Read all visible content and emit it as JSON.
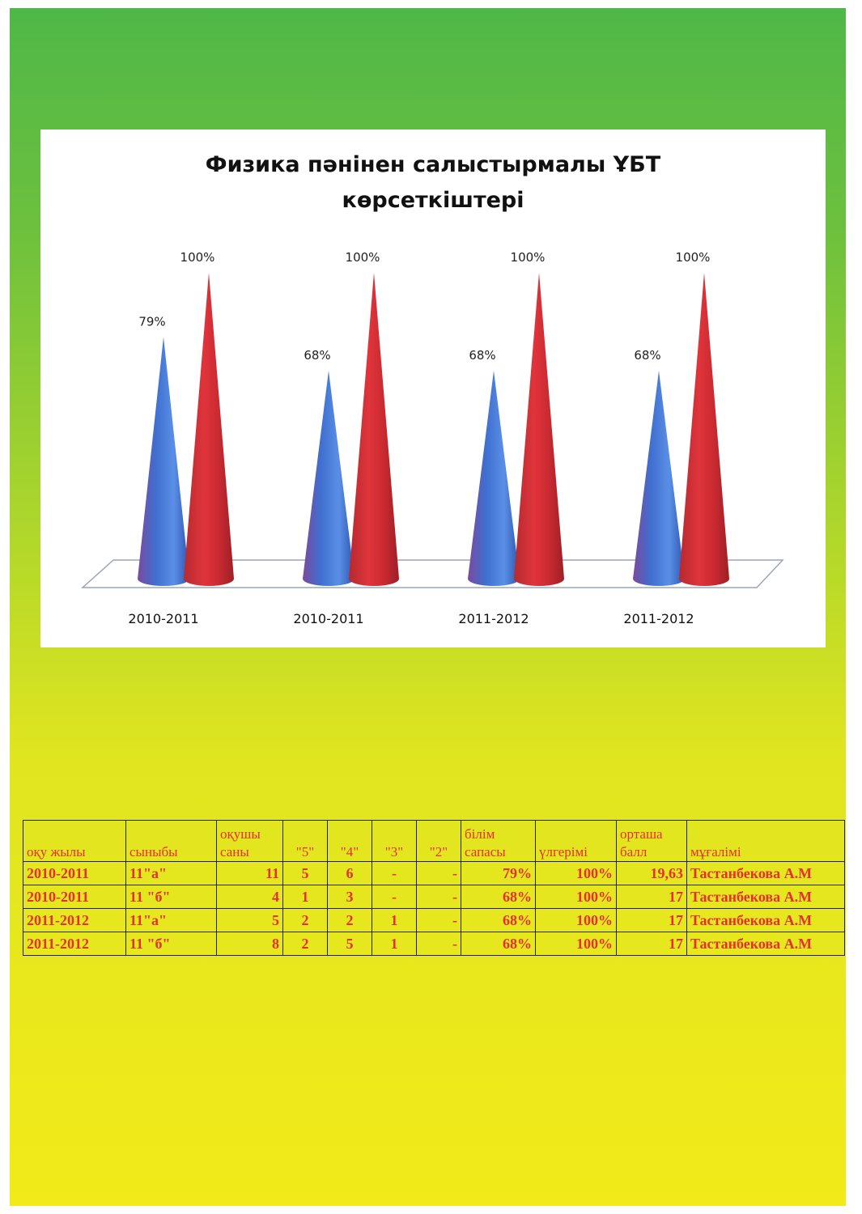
{
  "chart_data": {
    "type": "bar",
    "style": "3d-cone",
    "title": "Физика пәнінен салыстырмалы ҰБТ көрсеткіштері",
    "title_lines": [
      "Физика пәнінен салыстырмалы ҰБТ",
      "көрсеткіштері"
    ],
    "categories": [
      "2010-2011",
      "2010-2011",
      "2011-2012",
      "2011-2012"
    ],
    "series": [
      {
        "values": [
          79,
          68,
          68,
          68
        ],
        "labels": [
          "79%",
          "68%",
          "68%",
          "68%"
        ],
        "color": "#3f6fd0"
      },
      {
        "values": [
          100,
          100,
          100,
          100
        ],
        "labels": [
          "100%",
          "100%",
          "100%",
          "100%"
        ],
        "color": "#d12b32"
      }
    ],
    "ylim": [
      0,
      100
    ],
    "grid": false,
    "legend": "none"
  },
  "table": {
    "headers": [
      [
        "оқу жылы"
      ],
      [
        "сыныбы"
      ],
      [
        "оқушы",
        "саны"
      ],
      [
        "\"5\""
      ],
      [
        "\"4\""
      ],
      [
        "\"3\""
      ],
      [
        "\"2\""
      ],
      [
        "білім",
        "сапасы"
      ],
      [
        "үлгерімі"
      ],
      [
        "орташа",
        "балл"
      ],
      [
        "мұғалімі"
      ]
    ],
    "rows": [
      [
        "2010-2011",
        "11\"а\"",
        "11",
        "5",
        "6",
        "-",
        "-",
        "79%",
        "100%",
        "19,63",
        "Тастанбекова А.М"
      ],
      [
        "2010-2011",
        "11 \"б\"",
        "4",
        "1",
        "3",
        "-",
        "-",
        "68%",
        "100%",
        "17",
        "Тастанбекова А.М"
      ],
      [
        "2011-2012",
        "11\"а\"",
        "5",
        "2",
        "2",
        "1",
        "-",
        "68%",
        "100%",
        "17",
        "Тастанбекова А.М"
      ],
      [
        "2011-2012",
        "11 \"б\"",
        "8",
        "2",
        "5",
        "1",
        "-",
        "68%",
        "100%",
        "17",
        "Тастанбекова А.М"
      ]
    ]
  },
  "colors": {
    "page_top": "#4fb848",
    "page_bottom": "#f2ea19",
    "table_text": "#e53030"
  }
}
